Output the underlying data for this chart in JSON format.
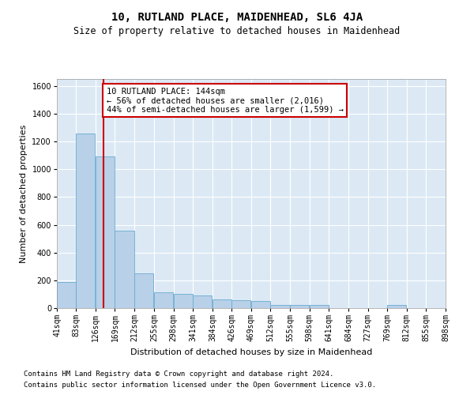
{
  "title": "10, RUTLAND PLACE, MAIDENHEAD, SL6 4JA",
  "subtitle": "Size of property relative to detached houses in Maidenhead",
  "xlabel": "Distribution of detached houses by size in Maidenhead",
  "ylabel": "Number of detached properties",
  "footnote1": "Contains HM Land Registry data © Crown copyright and database right 2024.",
  "footnote2": "Contains public sector information licensed under the Open Government Licence v3.0.",
  "annotation_line1": "10 RUTLAND PLACE: 144sqm",
  "annotation_line2": "← 56% of detached houses are smaller (2,016)",
  "annotation_line3": "44% of semi-detached houses are larger (1,599) →",
  "property_size": 144,
  "bar_color": "#b8d0e8",
  "bar_edge_color": "#6aabd2",
  "vline_color": "#cc0000",
  "annotation_box_edge_color": "#cc0000",
  "background_color": "#dce9f5",
  "bins": [
    41,
    83,
    126,
    169,
    212,
    255,
    298,
    341,
    384,
    426,
    469,
    512,
    555,
    598,
    641,
    684,
    727,
    769,
    812,
    855,
    898
  ],
  "counts": [
    190,
    1260,
    1090,
    560,
    250,
    115,
    100,
    90,
    65,
    55,
    50,
    25,
    20,
    20,
    0,
    0,
    0,
    20,
    0,
    0
  ],
  "ylim": [
    0,
    1650
  ],
  "yticks": [
    0,
    200,
    400,
    600,
    800,
    1000,
    1200,
    1400,
    1600
  ],
  "title_fontsize": 10,
  "subtitle_fontsize": 8.5,
  "axis_label_fontsize": 8,
  "tick_fontsize": 7,
  "annotation_fontsize": 7.5,
  "footnote_fontsize": 6.5
}
